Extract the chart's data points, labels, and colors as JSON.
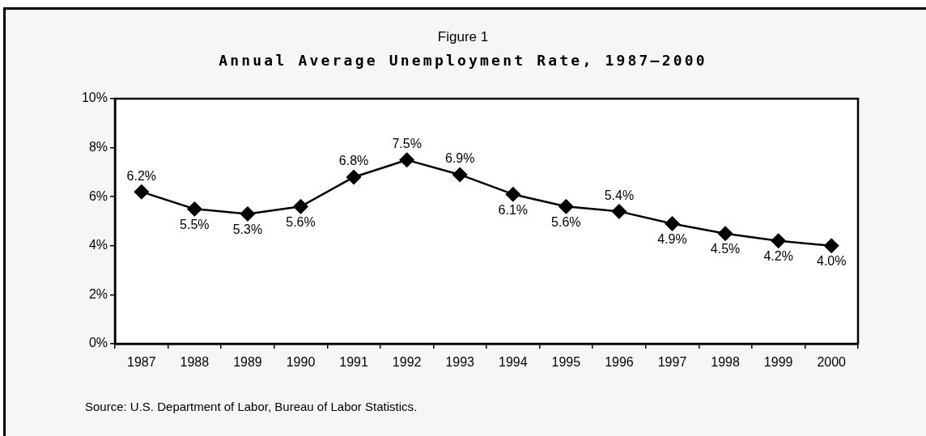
{
  "chart_data": {
    "type": "line",
    "subtitle": "Figure 1",
    "title": "Annual Average Unemployment Rate, 1987–2000",
    "categories": [
      "1987",
      "1988",
      "1989",
      "1990",
      "1991",
      "1992",
      "1993",
      "1994",
      "1995",
      "1996",
      "1997",
      "1998",
      "1999",
      "2000"
    ],
    "values": [
      6.2,
      5.5,
      5.3,
      5.6,
      6.8,
      7.5,
      6.9,
      6.1,
      5.6,
      5.4,
      4.9,
      4.5,
      4.2,
      4.0
    ],
    "value_labels": [
      "6.2%",
      "5.5%",
      "5.3%",
      "5.6%",
      "6.8%",
      "7.5%",
      "6.9%",
      "6.1%",
      "5.6%",
      "5.4%",
      "4.9%",
      "4.5%",
      "4.2%",
      "4.0%"
    ],
    "color": "#000000",
    "ylim": [
      0,
      10
    ],
    "yticks": [
      {
        "value": 0,
        "label": "0%"
      },
      {
        "value": 2,
        "label": "2%"
      },
      {
        "value": 4,
        "label": "4%"
      },
      {
        "value": 6,
        "label": "6%"
      },
      {
        "value": 8,
        "label": "8%"
      },
      {
        "value": 10,
        "label": "10%"
      }
    ],
    "grid": false,
    "legend": false,
    "marker": "diamond",
    "line_style": "solid",
    "annotations": [
      "Source: U.S. Department of Labor, Bureau of Labor Statistics."
    ]
  }
}
